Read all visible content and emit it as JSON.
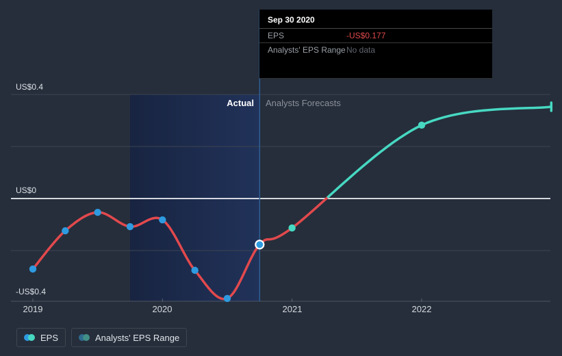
{
  "chart": {
    "y_axis_labels": [
      {
        "label": "US$0.4"
      },
      {
        "label": "US$0"
      },
      {
        "label": "-US$0.4"
      }
    ],
    "x_axis_labels": [
      {
        "label": "2019"
      },
      {
        "label": "2020"
      },
      {
        "label": "2021"
      },
      {
        "label": "2022"
      }
    ],
    "annotations": {
      "actual": "Actual",
      "forecast": "Analysts Forecasts"
    }
  },
  "tooltip": {
    "title": "Sep 30 2020",
    "rows": [
      {
        "label": "EPS",
        "value": "-US$0.177"
      },
      {
        "label": "Analysts' EPS Range",
        "value": "No data"
      }
    ]
  },
  "legend": {
    "items": [
      {
        "label": "EPS",
        "colors": [
          "#2e9ae0",
          "#47d8c2"
        ]
      },
      {
        "label": "Analysts' EPS Range",
        "colors": [
          "#2f6b8f",
          "#418f88"
        ]
      }
    ]
  },
  "colors": {
    "background": "#262e3b",
    "actual_line": "#e2494d",
    "actual_marker": "#2e9ae0",
    "forecast_line": "#47d8c2",
    "zero_line": "#eef1f4",
    "gridline": "#3c4451",
    "axis_line": "#4d5564",
    "divider_line": "#2d5f96",
    "shaded_from": "#182441",
    "shaded_to": "#213259",
    "tooltip_bg": "#000000",
    "negative_value": "#e2494d"
  },
  "chart_data": {
    "type": "line",
    "title": "EPS history and analysts forecasts",
    "units": "US$ per share",
    "x_ticks": [
      2019,
      2020,
      2021,
      2022
    ],
    "y_ticks": [
      {
        "value": 0.4,
        "label": "US$0.4"
      },
      {
        "value": 0,
        "label": "US$0"
      },
      {
        "value": -0.4,
        "label": "-US$0.4"
      }
    ],
    "gridline_values": [
      0.4,
      0.2,
      -0.2
    ],
    "ylim": [
      -0.4,
      0.4
    ],
    "grid": true,
    "legend_position": "bottom-left",
    "divider_date": "2020-09-30",
    "divider_t": 2020.75,
    "shaded_span": {
      "from_date": "2019-09-30",
      "to_date": "2020-09-30",
      "from_t": 2019.75,
      "to_t": 2020.75
    },
    "highlight_point": {
      "date": "2020-09-30",
      "t": 2020.75,
      "value": -0.177
    },
    "series": [
      {
        "name": "EPS",
        "kind": "actual",
        "line_color": "#e2494d",
        "marker_color": "#2e9ae0",
        "points": [
          {
            "date": "2018-12-31",
            "t": 2019.0,
            "value": -0.271
          },
          {
            "date": "2019-03-31",
            "t": 2019.25,
            "value": -0.124
          },
          {
            "date": "2019-06-30",
            "t": 2019.5,
            "value": -0.053
          },
          {
            "date": "2019-09-30",
            "t": 2019.75,
            "value": -0.108
          },
          {
            "date": "2019-12-31",
            "t": 2020.0,
            "value": -0.082
          },
          {
            "date": "2020-03-31",
            "t": 2020.25,
            "value": -0.276
          },
          {
            "date": "2020-06-30",
            "t": 2020.5,
            "value": -0.384
          },
          {
            "date": "2020-09-30",
            "t": 2020.75,
            "value": -0.177,
            "highlight": true
          }
        ]
      },
      {
        "name": "Analysts Forecasts",
        "kind": "forecast",
        "line_color": "#47d8c2",
        "marker_color": "#47d8c2",
        "points": [
          {
            "date": "2020-12-31",
            "t": 2021.0,
            "value": -0.113
          },
          {
            "date": "2021-12-31",
            "t": 2022.0,
            "value": 0.282
          },
          {
            "date": "2022-12-31",
            "t": 2023.0,
            "value": 0.353,
            "marker": false,
            "endcap": true
          }
        ]
      }
    ]
  }
}
